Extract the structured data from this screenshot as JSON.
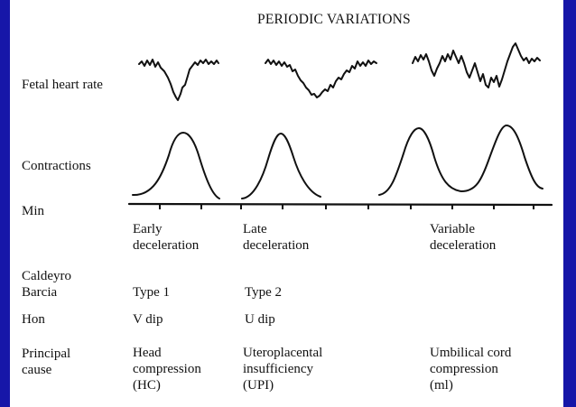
{
  "title": "PERIODIC VARIATIONS",
  "rows": {
    "fhr": "Fetal heart rate",
    "contractions": "Contractions",
    "min": "Min",
    "caldeyro_line1": "Caldeyro",
    "caldeyro_line2": "Barcia",
    "hon": "Hon",
    "cause_line1": "Principal",
    "cause_line2": "cause"
  },
  "columns": {
    "early": {
      "name_line1": "Early",
      "name_line2": "deceleration",
      "caldeyro": "Type 1",
      "hon": "V dip",
      "cause_line1": "Head",
      "cause_line2": "compression",
      "cause_line3": "(HC)"
    },
    "late": {
      "name_line1": "Late",
      "name_line2": "deceleration",
      "caldeyro": "Type 2",
      "hon": "U dip",
      "cause_line1": "Uteroplacental",
      "cause_line2": "insufficiency",
      "cause_line3": "(UPI)"
    },
    "variable": {
      "name_line1": "Variable",
      "name_line2": "deceleration",
      "cause_line1": "Umbilical cord",
      "cause_line2": "compression",
      "cause_line3": "(ml)"
    }
  },
  "colors": {
    "background": "#1616a8",
    "panel": "#ffffff",
    "ink": "#111111"
  }
}
